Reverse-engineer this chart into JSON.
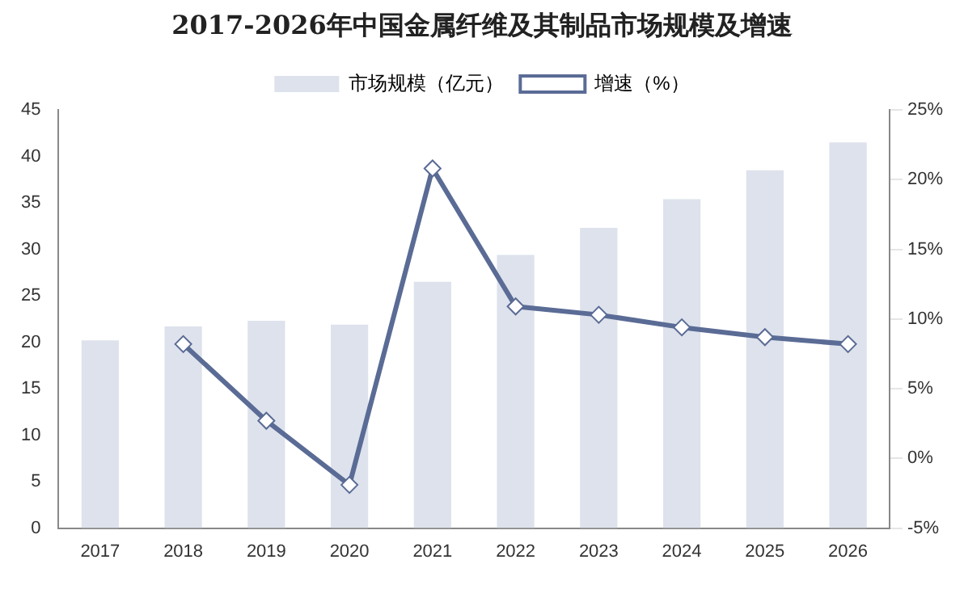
{
  "chart_data": {
    "type": "bar",
    "title": "2017-2026年中国金属纤维及其制品市场规模及增速",
    "categories": [
      "2017",
      "2018",
      "2019",
      "2020",
      "2021",
      "2022",
      "2023",
      "2024",
      "2025",
      "2026"
    ],
    "series": [
      {
        "name": "市场规模（亿元）",
        "color": "#dde2ec",
        "values": [
          20.2,
          21.7,
          22.3,
          21.9,
          26.5,
          29.4,
          32.3,
          35.4,
          38.5,
          41.5
        ]
      },
      {
        "name": "增速（%）",
        "type": "line",
        "axis": "y2",
        "color": "#5a6b95",
        "marker": "diamond",
        "values": [
          null,
          8.2,
          2.7,
          -1.9,
          20.8,
          10.9,
          10.3,
          9.4,
          8.7,
          8.2
        ]
      }
    ],
    "ylim": [
      0,
      45
    ],
    "yticks": [
      0,
      5,
      10,
      15,
      20,
      25,
      30,
      35,
      40,
      45
    ],
    "y2lim": [
      -5,
      25
    ],
    "y2ticks": [
      {
        "value": -5,
        "label": "-5%"
      },
      {
        "value": 0,
        "label": "0%"
      },
      {
        "value": 5,
        "label": "5%"
      },
      {
        "value": 10,
        "label": "10%"
      },
      {
        "value": 15,
        "label": "15%"
      },
      {
        "value": 20,
        "label": "20%"
      },
      {
        "value": 25,
        "label": "25%"
      }
    ],
    "grid": false,
    "legend": "top"
  }
}
